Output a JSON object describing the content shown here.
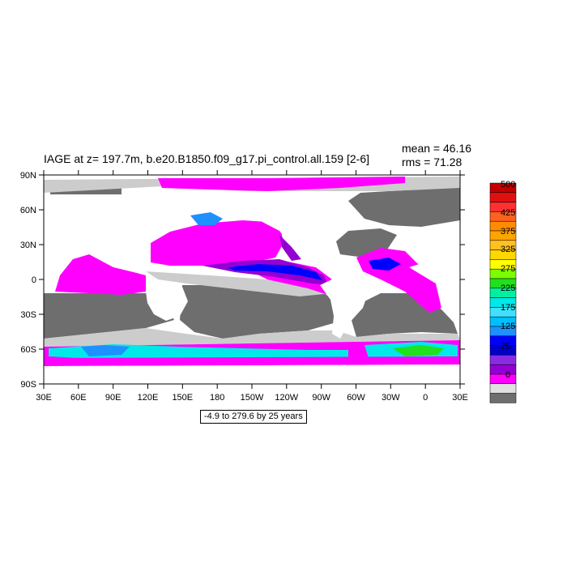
{
  "header": {
    "title": "IAGE at z= 197.7m, b.e20.B1850.f09_g17.pi_control.all.159 [2-6]",
    "mean": "mean = 46.16",
    "rms": "rms = 71.28"
  },
  "footer": {
    "range_note": "-4.9 to 279.6 by 25 years"
  },
  "map": {
    "lat_labels": [
      "90N",
      "60N",
      "30N",
      "0",
      "30S",
      "60S",
      "90S"
    ],
    "lon_labels": [
      "30E",
      "60E",
      "90E",
      "120E",
      "150E",
      "180",
      "150W",
      "120W",
      "90W",
      "60W",
      "30W",
      "0",
      "30E"
    ]
  },
  "colorbar": {
    "labels": [
      "500",
      "425",
      "375",
      "325",
      "275",
      "225",
      "175",
      "125",
      "75",
      "0"
    ],
    "colors": [
      "#c00000",
      "#e01010",
      "#ff3030",
      "#ff6020",
      "#ff8c00",
      "#ffa500",
      "#ffc020",
      "#ffd700",
      "#ffff00",
      "#7cfc00",
      "#20e020",
      "#00f0a0",
      "#00e8e8",
      "#40e0ff",
      "#00bfff",
      "#1e90ff",
      "#0000ff",
      "#0000c8",
      "#8a2be2",
      "#9400d3",
      "#ff00ff",
      "#e0e0e0",
      "#6e6e6e"
    ]
  },
  "fields": {
    "land": "#ffffff",
    "gray_dark": "#6e6e6e",
    "gray_light": "#cccccc"
  }
}
